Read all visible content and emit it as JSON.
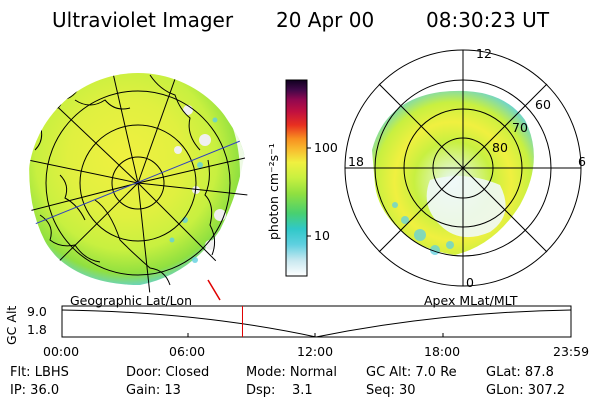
{
  "header": {
    "instrument": "Ultraviolet Imager",
    "date": "20 Apr 00",
    "time": "08:30:23 UT"
  },
  "colorbar": {
    "unit_label": "photon cm⁻²s⁻¹",
    "ticks": [
      "100",
      "10"
    ],
    "colors": [
      "#ffffff",
      "#c8e8f0",
      "#60d0e0",
      "#30c8c8",
      "#48d070",
      "#90e040",
      "#c8f040",
      "#f0f040",
      "#f8c030",
      "#f89020",
      "#e83020",
      "#c01040",
      "#900850",
      "#400848",
      "#100020"
    ]
  },
  "left_panel": {
    "caption": "Geographic Lat/Lon"
  },
  "right_panel": {
    "caption": "Apex MLat/MLT",
    "mlt_labels": {
      "top": "12",
      "left": "18",
      "right": "6",
      "bottom": "0"
    },
    "lat_labels": [
      "60",
      "70",
      "80"
    ]
  },
  "altitude_strip": {
    "ylabel": "GC Alt",
    "yticks": [
      "9.0",
      "1.8"
    ],
    "xticks": [
      "00:00",
      "06:00",
      "12:00",
      "18:00",
      "23:59"
    ],
    "cursor_time_hours": 8.51,
    "cursor_color": "#e00000"
  },
  "status": {
    "row1": [
      {
        "label": "Flt: LBHS"
      },
      {
        "label": "Door: Closed"
      },
      {
        "label": "Mode: Normal"
      },
      {
        "label": "GC Alt: 7.0 Re"
      },
      {
        "label": "GLat: 87.8"
      }
    ],
    "row2": [
      {
        "label": "IP: 36.0"
      },
      {
        "label": "Gain: 13"
      },
      {
        "label": "Dsp:    3.1"
      },
      {
        "label": "Seq: 30"
      },
      {
        "label": "GLon: 307.2"
      }
    ]
  }
}
